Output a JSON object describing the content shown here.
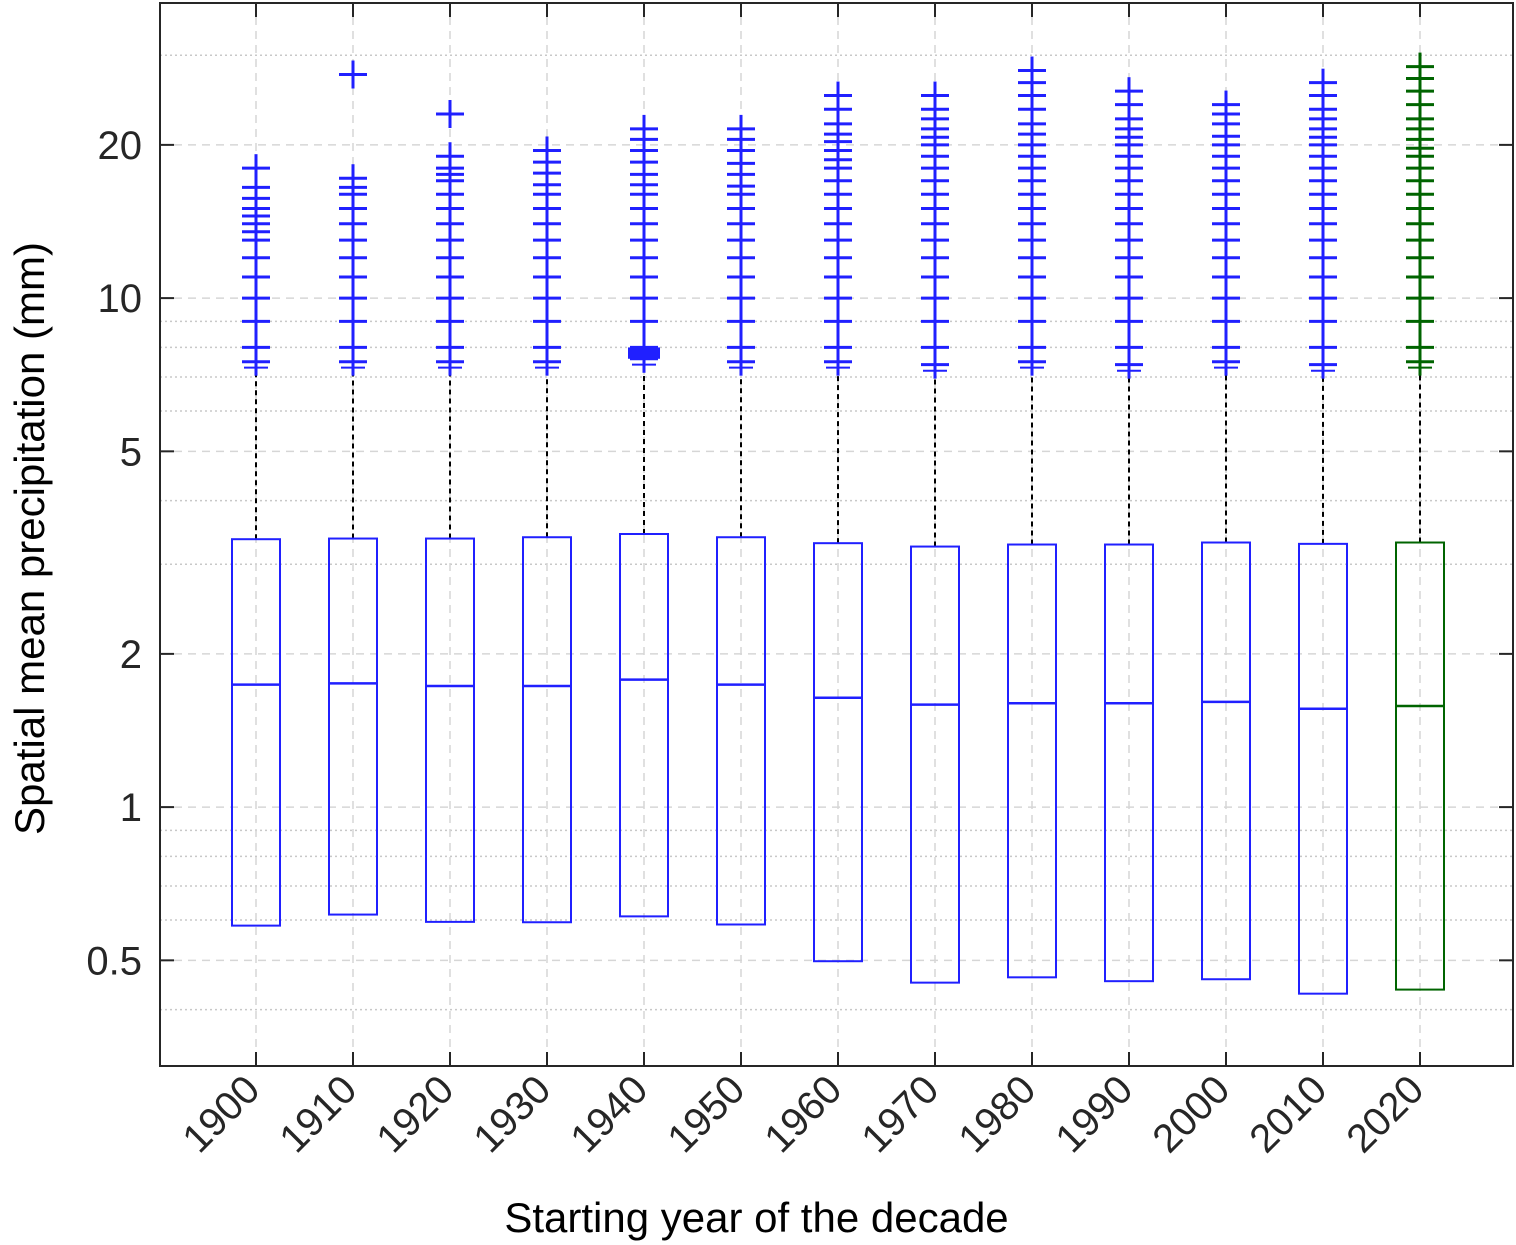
{
  "chart_data": {
    "type": "box",
    "xlabel": "Starting year of the decade",
    "ylabel": "Spatial mean precipitation (mm)",
    "y_scale": "log",
    "ylim": [
      0.31,
      38
    ],
    "yticks": [
      0.5,
      1,
      2,
      5,
      10,
      20
    ],
    "ytick_labels": [
      "0.5",
      "1",
      "2",
      "5",
      "10",
      "20"
    ],
    "grid": true,
    "categories": [
      "1900",
      "1910",
      "1920",
      "1930",
      "1940",
      "1950",
      "1960",
      "1970",
      "1980",
      "1990",
      "2000",
      "2010",
      "2020"
    ],
    "colors": {
      "default": "#2020ff",
      "highlight": "#006400",
      "whisker": "#000000",
      "grid": "#c8c8c8"
    },
    "highlight_category": "2020",
    "boxes": [
      {
        "q1": 0.585,
        "median": 1.74,
        "q3": 3.36,
        "upper_whisker": 7.3,
        "outliers": [
          7.5,
          8,
          9,
          10,
          11,
          12,
          13,
          13.5,
          14,
          14.5,
          15,
          15.7,
          16.5,
          18
        ]
      },
      {
        "q1": 0.615,
        "median": 1.75,
        "q3": 3.37,
        "upper_whisker": 7.3,
        "outliers": [
          7.5,
          8,
          9,
          10,
          11,
          12,
          13,
          14,
          15,
          16,
          16.5,
          17.2,
          27.5
        ]
      },
      {
        "q1": 0.595,
        "median": 1.73,
        "q3": 3.37,
        "upper_whisker": 7.3,
        "outliers": [
          7.5,
          8,
          9,
          10,
          11,
          12,
          13,
          14,
          15,
          16,
          17,
          17.5,
          18,
          19,
          23
        ]
      },
      {
        "q1": 0.594,
        "median": 1.73,
        "q3": 3.39,
        "upper_whisker": 7.3,
        "outliers": [
          7.5,
          8,
          9,
          10,
          11,
          12,
          13,
          14,
          15,
          16,
          16.7,
          17.6,
          18.5,
          19.5
        ]
      },
      {
        "q1": 0.61,
        "median": 1.78,
        "q3": 3.44,
        "upper_whisker": 7.4,
        "outliers": [
          7.6,
          8,
          9,
          10,
          11,
          12,
          13,
          14,
          15,
          16,
          16.7,
          17.5,
          18.5,
          19.5,
          20.5,
          21.5
        ]
      },
      {
        "q1": 0.588,
        "median": 1.74,
        "q3": 3.39,
        "upper_whisker": 7.3,
        "outliers": [
          7.5,
          8,
          9,
          10,
          11,
          12,
          13,
          14,
          15,
          16,
          16.6,
          17.5,
          18.4,
          19.5,
          20.5,
          21.5
        ]
      },
      {
        "q1": 0.498,
        "median": 1.64,
        "q3": 3.3,
        "upper_whisker": 7.3,
        "outliers": [
          7.5,
          8,
          9,
          10,
          11,
          12,
          13,
          14,
          15,
          16,
          17,
          18,
          18.7,
          19.5,
          20.3,
          21,
          22,
          23.5,
          25
        ]
      },
      {
        "q1": 0.452,
        "median": 1.59,
        "q3": 3.25,
        "upper_whisker": 7.2,
        "outliers": [
          7.4,
          8,
          9,
          10,
          11,
          12,
          13,
          14,
          15,
          16,
          17,
          18,
          19,
          20,
          20.7,
          21.5,
          22.5,
          23.5,
          25
        ]
      },
      {
        "q1": 0.463,
        "median": 1.6,
        "q3": 3.28,
        "upper_whisker": 7.3,
        "outliers": [
          7.5,
          8,
          9,
          10,
          11,
          12,
          13,
          14,
          15,
          16,
          17,
          18,
          19,
          20,
          21,
          22,
          23.5,
          25,
          26.5,
          28
        ]
      },
      {
        "q1": 0.455,
        "median": 1.6,
        "q3": 3.28,
        "upper_whisker": 7.2,
        "outliers": [
          7.4,
          8,
          9,
          10,
          11,
          12,
          13,
          14,
          15,
          16,
          17,
          18,
          19,
          20,
          20.7,
          21.5,
          22.5,
          24,
          25.5
        ]
      },
      {
        "q1": 0.459,
        "median": 1.61,
        "q3": 3.31,
        "upper_whisker": 7.3,
        "outliers": [
          7.5,
          8,
          9,
          10,
          11,
          12,
          13,
          14,
          15,
          16,
          17,
          18,
          19,
          20,
          20.8,
          22,
          23,
          24
        ]
      },
      {
        "q1": 0.43,
        "median": 1.56,
        "q3": 3.29,
        "upper_whisker": 7.2,
        "outliers": [
          7.4,
          8,
          9,
          10,
          11,
          12,
          13,
          14,
          15,
          16,
          17,
          18,
          19,
          20,
          20.7,
          21.5,
          22.5,
          23.5,
          25,
          26.5
        ]
      },
      {
        "q1": 0.438,
        "median": 1.58,
        "q3": 3.31,
        "upper_whisker": 7.3,
        "outliers": [
          7.5,
          8,
          9,
          10,
          11,
          12,
          13,
          14,
          15,
          16,
          17,
          18,
          19,
          19.7,
          20.5,
          21.5,
          22.5,
          24,
          25.5,
          27,
          28.5
        ]
      }
    ]
  }
}
